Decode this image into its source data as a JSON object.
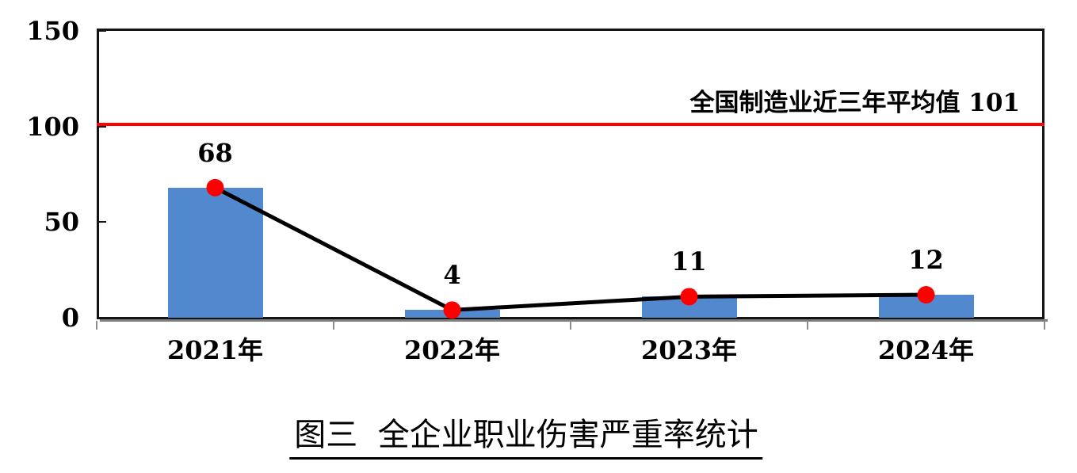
{
  "chart_data": {
    "type": "bar",
    "title": "图三  全企业职业伤害严重率统计",
    "categories": [
      "2021年",
      "2022年",
      "2023年",
      "2024年"
    ],
    "series": [
      {
        "type": "bar",
        "values": [
          68,
          4,
          11,
          12
        ],
        "color": "#5289CE"
      },
      {
        "type": "line",
        "values": [
          68,
          4,
          11,
          12
        ],
        "color": "#000000",
        "marker": "circle",
        "marker_color": "#FF0000"
      }
    ],
    "data_labels": [
      "68",
      "4",
      "11",
      "12"
    ],
    "yticks": [
      0,
      50,
      100,
      150
    ],
    "ylim": [
      0,
      150
    ],
    "grid": false,
    "legend": false,
    "reference_line": {
      "value": 101,
      "label": "全国制造业近三年平均值 101",
      "color": "#FF0000"
    },
    "colors": {
      "axis": "#141414",
      "axis_shadow": "#7f7f7f",
      "x_tick": "#8c8c8c"
    }
  }
}
